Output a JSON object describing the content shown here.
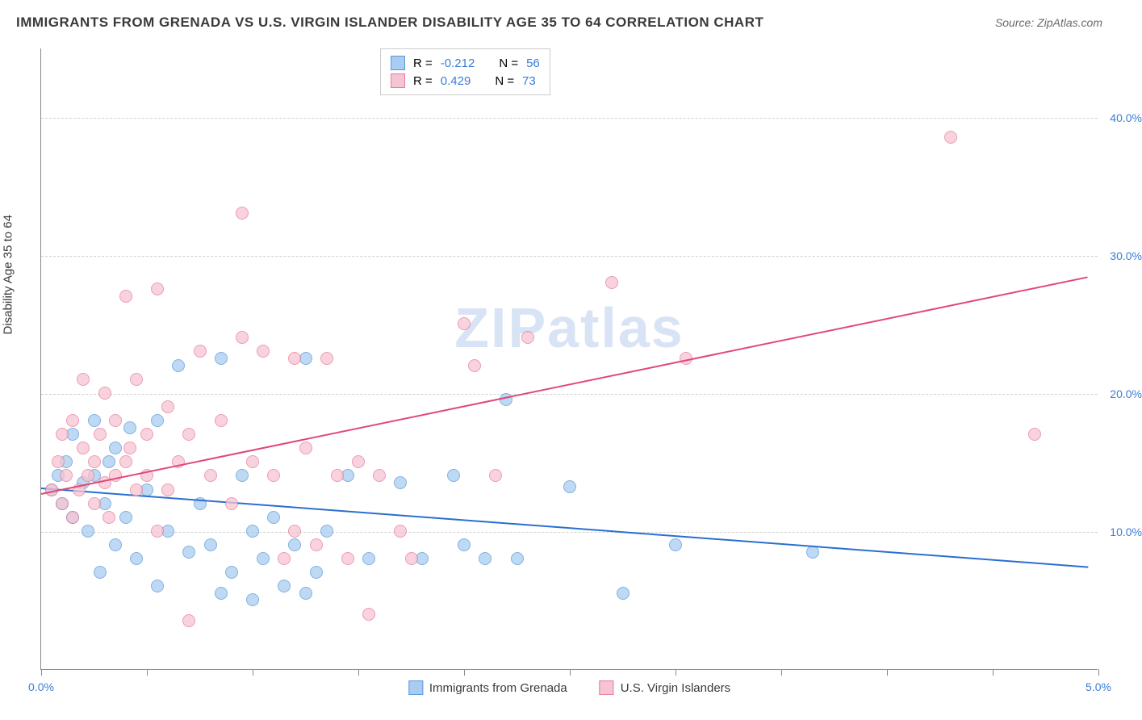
{
  "title": "IMMIGRANTS FROM GRENADA VS U.S. VIRGIN ISLANDER DISABILITY AGE 35 TO 64 CORRELATION CHART",
  "source": "Source: ZipAtlas.com",
  "ylabel": "Disability Age 35 to 64",
  "watermark": "ZIPatlas",
  "chart": {
    "type": "scatter",
    "xlim": [
      0,
      5
    ],
    "ylim": [
      0,
      45
    ],
    "xticks": [
      0,
      0.5,
      1,
      1.5,
      2,
      2.5,
      3,
      3.5,
      4,
      4.5,
      5
    ],
    "xtick_labels": {
      "0": "0.0%",
      "5": "5.0%"
    },
    "yticks": [
      10,
      20,
      30,
      40
    ],
    "ytick_labels": [
      "10.0%",
      "20.0%",
      "30.0%",
      "40.0%"
    ],
    "grid_color": "#d0d0d0",
    "background_color": "#ffffff",
    "axis_color": "#888888",
    "tick_label_color": "#3b7dd8",
    "series": [
      {
        "name": "Immigrants from Grenada",
        "fill_color": "#a9cdf0",
        "stroke_color": "#5a98d8",
        "trend_color": "#2a6fd0",
        "R": "-0.212",
        "N": "56",
        "trend": {
          "x1": 0,
          "y1": 13.2,
          "x2": 4.95,
          "y2": 7.5
        },
        "points": [
          [
            0.05,
            13
          ],
          [
            0.08,
            14
          ],
          [
            0.1,
            12
          ],
          [
            0.12,
            15
          ],
          [
            0.15,
            11
          ],
          [
            0.15,
            17
          ],
          [
            0.2,
            13.5
          ],
          [
            0.22,
            10
          ],
          [
            0.25,
            14
          ],
          [
            0.25,
            18
          ],
          [
            0.28,
            7
          ],
          [
            0.3,
            12
          ],
          [
            0.32,
            15
          ],
          [
            0.35,
            9
          ],
          [
            0.35,
            16
          ],
          [
            0.4,
            11
          ],
          [
            0.42,
            17.5
          ],
          [
            0.45,
            8
          ],
          [
            0.5,
            13
          ],
          [
            0.55,
            18
          ],
          [
            0.55,
            6
          ],
          [
            0.6,
            10
          ],
          [
            0.65,
            22
          ],
          [
            0.7,
            8.5
          ],
          [
            0.75,
            12
          ],
          [
            0.8,
            9
          ],
          [
            0.85,
            5.5
          ],
          [
            0.85,
            22.5
          ],
          [
            0.9,
            7
          ],
          [
            0.95,
            14
          ],
          [
            1.0,
            10
          ],
          [
            1.0,
            5
          ],
          [
            1.05,
            8
          ],
          [
            1.1,
            11
          ],
          [
            1.15,
            6
          ],
          [
            1.2,
            9
          ],
          [
            1.25,
            5.5
          ],
          [
            1.25,
            22.5
          ],
          [
            1.3,
            7
          ],
          [
            1.35,
            10
          ],
          [
            1.45,
            14
          ],
          [
            1.55,
            8
          ],
          [
            1.7,
            13.5
          ],
          [
            1.8,
            8
          ],
          [
            1.95,
            14
          ],
          [
            2.0,
            9
          ],
          [
            2.1,
            8
          ],
          [
            2.2,
            19.5
          ],
          [
            2.25,
            8
          ],
          [
            2.5,
            13.2
          ],
          [
            2.75,
            5.5
          ],
          [
            3.0,
            9
          ],
          [
            3.65,
            8.5
          ]
        ]
      },
      {
        "name": "U.S. Virgin Islanders",
        "fill_color": "#f6c5d2",
        "stroke_color": "#e87a9a",
        "trend_color": "#e04878",
        "R": "0.429",
        "N": "73",
        "trend": {
          "x1": 0,
          "y1": 12.8,
          "x2": 4.95,
          "y2": 28.5
        },
        "points": [
          [
            0.05,
            13
          ],
          [
            0.08,
            15
          ],
          [
            0.1,
            12
          ],
          [
            0.1,
            17
          ],
          [
            0.12,
            14
          ],
          [
            0.15,
            18
          ],
          [
            0.15,
            11
          ],
          [
            0.18,
            13
          ],
          [
            0.2,
            16
          ],
          [
            0.2,
            21
          ],
          [
            0.22,
            14
          ],
          [
            0.25,
            15
          ],
          [
            0.25,
            12
          ],
          [
            0.28,
            17
          ],
          [
            0.3,
            13.5
          ],
          [
            0.3,
            20
          ],
          [
            0.32,
            11
          ],
          [
            0.35,
            14
          ],
          [
            0.35,
            18
          ],
          [
            0.4,
            27
          ],
          [
            0.4,
            15
          ],
          [
            0.42,
            16
          ],
          [
            0.45,
            13
          ],
          [
            0.45,
            21
          ],
          [
            0.5,
            17
          ],
          [
            0.5,
            14
          ],
          [
            0.55,
            27.5
          ],
          [
            0.55,
            10
          ],
          [
            0.6,
            19
          ],
          [
            0.6,
            13
          ],
          [
            0.65,
            15
          ],
          [
            0.7,
            17
          ],
          [
            0.7,
            3.5
          ],
          [
            0.75,
            23
          ],
          [
            0.8,
            14
          ],
          [
            0.85,
            18
          ],
          [
            0.9,
            12
          ],
          [
            0.95,
            24
          ],
          [
            0.95,
            33
          ],
          [
            1.0,
            15
          ],
          [
            1.05,
            23
          ],
          [
            1.1,
            14
          ],
          [
            1.15,
            8
          ],
          [
            1.2,
            22.5
          ],
          [
            1.2,
            10
          ],
          [
            1.25,
            16
          ],
          [
            1.3,
            9
          ],
          [
            1.35,
            22.5
          ],
          [
            1.4,
            14
          ],
          [
            1.45,
            8
          ],
          [
            1.5,
            15
          ],
          [
            1.55,
            4
          ],
          [
            1.6,
            14
          ],
          [
            1.7,
            10
          ],
          [
            1.75,
            8
          ],
          [
            2.0,
            25
          ],
          [
            2.05,
            22
          ],
          [
            2.15,
            14
          ],
          [
            2.3,
            24
          ],
          [
            2.7,
            28
          ],
          [
            3.05,
            22.5
          ],
          [
            4.3,
            38.5
          ],
          [
            4.7,
            17
          ]
        ]
      }
    ]
  },
  "legend_top": {
    "R_label": "R =",
    "N_label": "N ="
  },
  "legend_bottom_labels": [
    "Immigrants from Grenada",
    "U.S. Virgin Islanders"
  ]
}
